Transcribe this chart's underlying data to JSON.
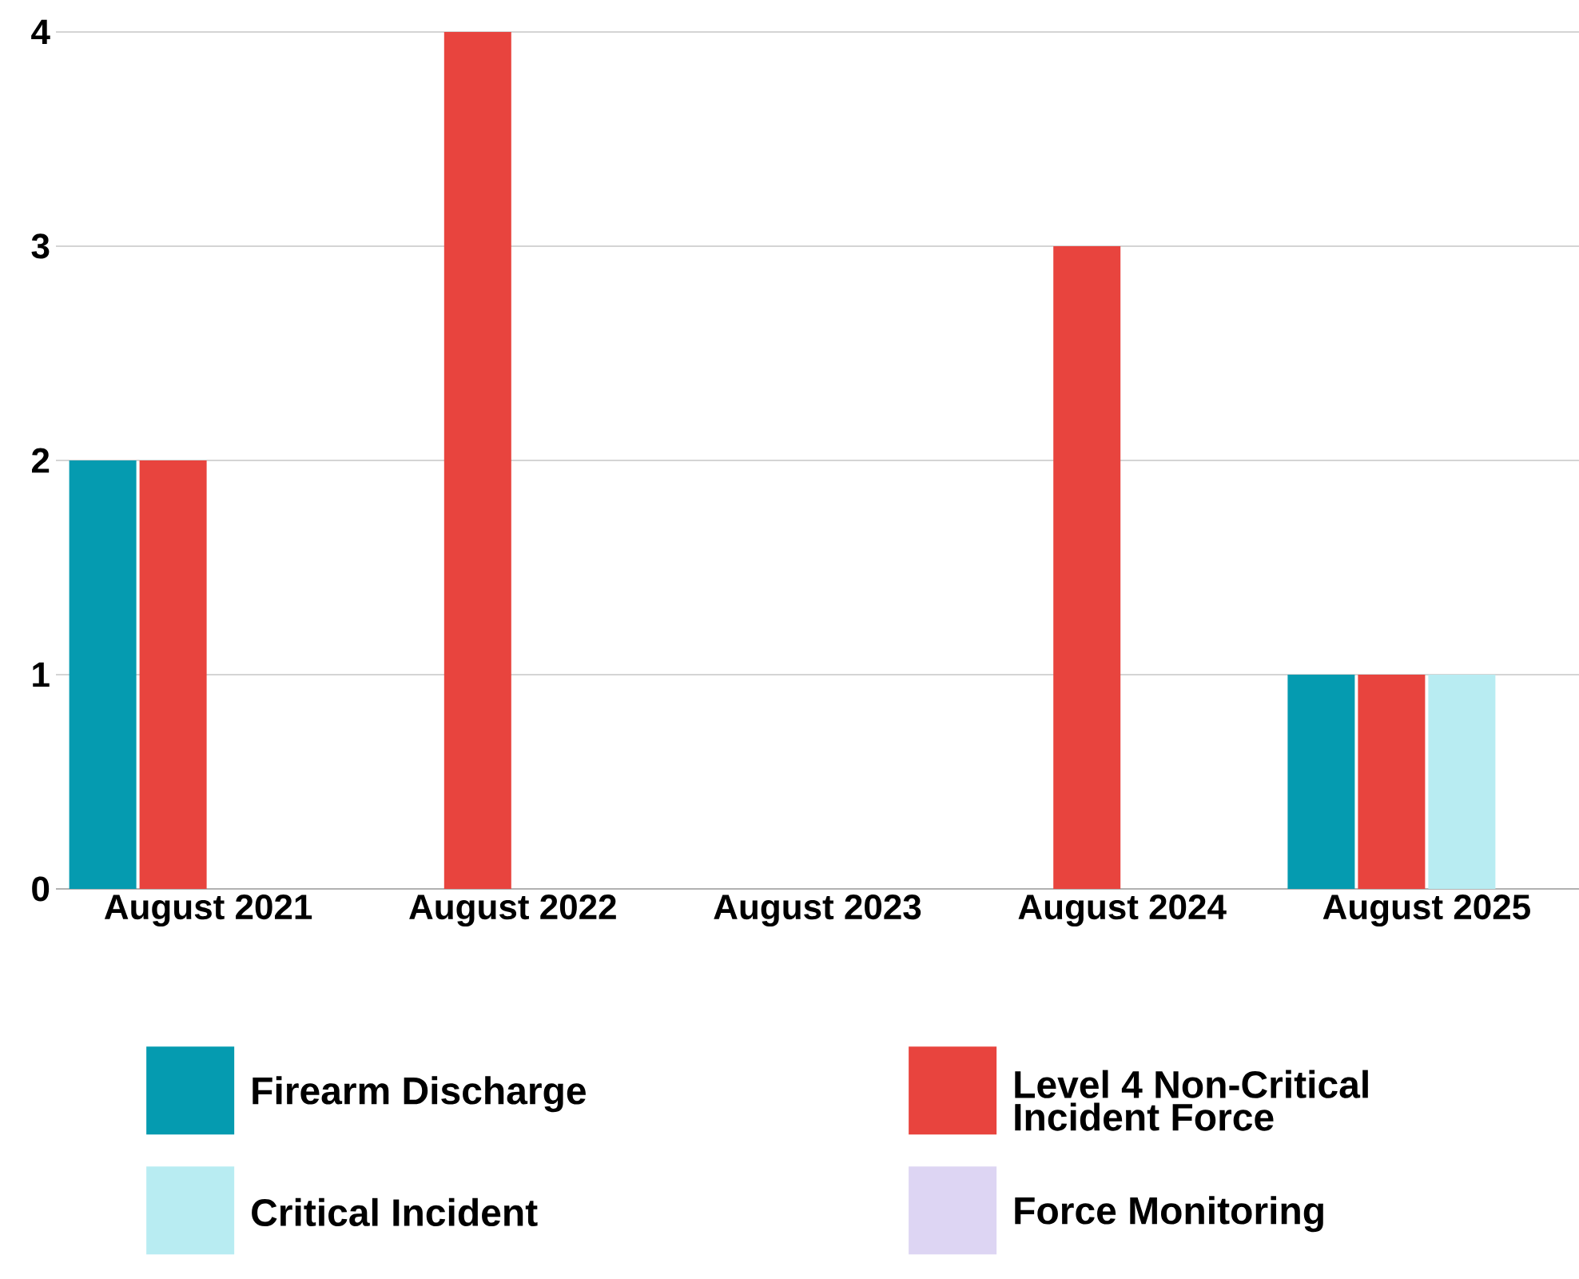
{
  "chart_data": {
    "type": "bar",
    "categories": [
      "August 2021",
      "August 2022",
      "August 2023",
      "August 2024",
      "August 2025"
    ],
    "series": [
      {
        "name": "Firearm Discharge",
        "color": "#059bb0",
        "values": [
          2,
          0,
          0,
          0,
          1
        ]
      },
      {
        "name": "Level 4 Non-Critical Incident Force",
        "color": "#e8443e",
        "values": [
          2,
          4,
          0,
          3,
          1
        ]
      },
      {
        "name": "Critical Incident",
        "color": "#b8ecf2",
        "values": [
          0,
          0,
          0,
          0,
          1
        ]
      },
      {
        "name": "Force Monitoring",
        "color": "#ddd5f3",
        "values": [
          0,
          0,
          0,
          0,
          0
        ]
      }
    ],
    "ylim": [
      0,
      4
    ],
    "yticks": [
      0,
      1,
      2,
      3,
      4
    ],
    "grid": "y",
    "legend": "bottom"
  }
}
